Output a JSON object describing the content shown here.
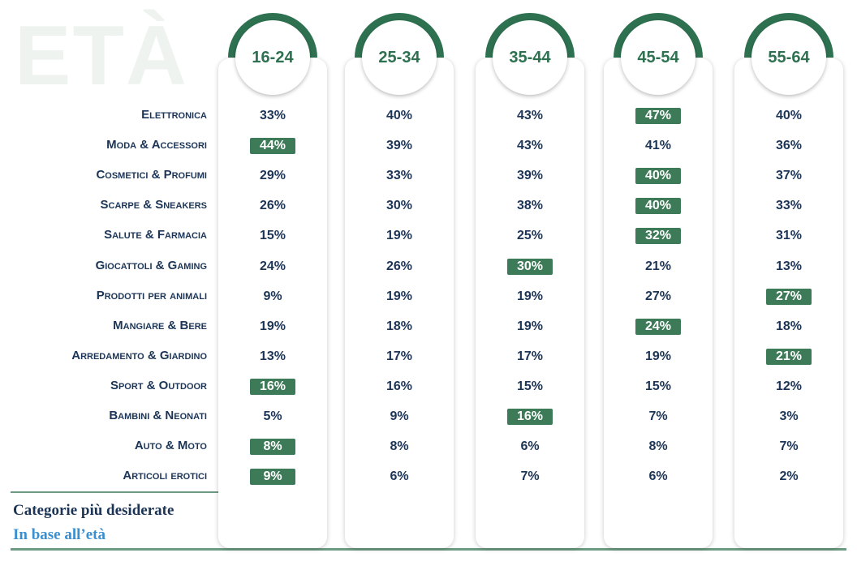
{
  "title": "ETÀ",
  "table": {
    "columns": [
      "16-24",
      "25-34",
      "35-44",
      "45-54",
      "55-64"
    ],
    "rows": [
      {
        "label": "Elettronica",
        "cells": [
          "33%",
          "40%",
          "43%",
          "47%",
          "40%"
        ],
        "highlight": [
          3
        ]
      },
      {
        "label": "Moda & Accessori",
        "cells": [
          "44%",
          "39%",
          "43%",
          "41%",
          "36%"
        ],
        "highlight": [
          0
        ]
      },
      {
        "label": "Cosmetici & Profumi",
        "cells": [
          "29%",
          "33%",
          "39%",
          "40%",
          "37%"
        ],
        "highlight": [
          3
        ]
      },
      {
        "label": "Scarpe & Sneakers",
        "cells": [
          "26%",
          "30%",
          "38%",
          "40%",
          "33%"
        ],
        "highlight": [
          3
        ]
      },
      {
        "label": "Salute & Farmacia",
        "cells": [
          "15%",
          "19%",
          "25%",
          "32%",
          "31%"
        ],
        "highlight": [
          3
        ]
      },
      {
        "label": "Giocattoli & Gaming",
        "cells": [
          "24%",
          "26%",
          "30%",
          "21%",
          "13%"
        ],
        "highlight": [
          2
        ]
      },
      {
        "label": "Prodotti per animali",
        "cells": [
          "9%",
          "19%",
          "19%",
          "27%",
          "27%"
        ],
        "highlight": [
          4
        ]
      },
      {
        "label": "Mangiare & Bere",
        "cells": [
          "19%",
          "18%",
          "19%",
          "24%",
          "18%"
        ],
        "highlight": [
          3
        ]
      },
      {
        "label": "Arredamento & Giardino",
        "cells": [
          "13%",
          "17%",
          "17%",
          "19%",
          "21%"
        ],
        "highlight": [
          4
        ]
      },
      {
        "label": "Sport & Outdoor",
        "cells": [
          "16%",
          "16%",
          "15%",
          "15%",
          "12%"
        ],
        "highlight": [
          0
        ]
      },
      {
        "label": "Bambini & Neonati",
        "cells": [
          "5%",
          "9%",
          "16%",
          "7%",
          "3%"
        ],
        "highlight": [
          2
        ]
      },
      {
        "label": "Auto & Moto",
        "cells": [
          "8%",
          "8%",
          "6%",
          "8%",
          "7%"
        ],
        "highlight": [
          0
        ]
      },
      {
        "label": "Articoli erotici",
        "cells": [
          "9%",
          "6%",
          "7%",
          "6%",
          "2%"
        ],
        "highlight": [
          0
        ]
      }
    ]
  },
  "footer": {
    "title": "Categorie più desiderate",
    "subtitle": "In base all’età"
  }
}
